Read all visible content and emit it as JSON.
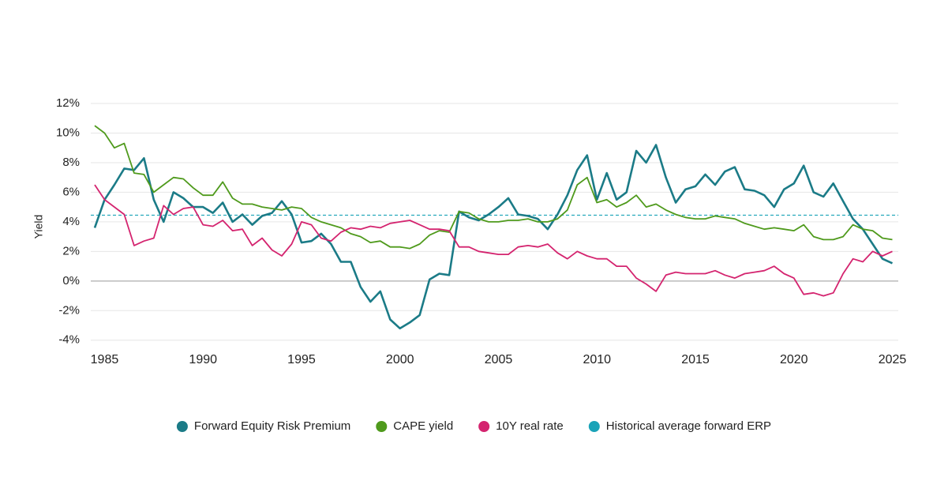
{
  "chart_data": {
    "type": "line",
    "y_label": "Yield",
    "x": [
      1984.5,
      1985,
      1985.5,
      1986,
      1986.5,
      1987,
      1987.5,
      1988,
      1988.5,
      1989,
      1989.5,
      1990,
      1990.5,
      1991,
      1991.5,
      1992,
      1992.5,
      1993,
      1993.5,
      1994,
      1994.5,
      1995,
      1995.5,
      1996,
      1996.5,
      1997,
      1997.5,
      1998,
      1998.5,
      1999,
      1999.5,
      2000,
      2000.5,
      2001,
      2001.5,
      2002,
      2002.5,
      2003,
      2003.5,
      2004,
      2004.5,
      2005,
      2005.5,
      2006,
      2006.5,
      2007,
      2007.5,
      2008,
      2008.5,
      2009,
      2009.5,
      2010,
      2010.5,
      2011,
      2011.5,
      2012,
      2012.5,
      2013,
      2013.5,
      2014,
      2014.5,
      2015,
      2015.5,
      2016,
      2016.5,
      2017,
      2017.5,
      2018,
      2018.5,
      2019,
      2019.5,
      2020,
      2020.5,
      2021,
      2021.5,
      2022,
      2022.5,
      2023,
      2023.5,
      2024,
      2024.5,
      2025
    ],
    "series": [
      {
        "name": "Forward Equity Risk Premium",
        "color": "#1b7b87",
        "width": 2.6,
        "values": [
          3.6,
          5.5,
          6.5,
          7.6,
          7.5,
          8.3,
          5.5,
          4.0,
          6.0,
          5.6,
          5.0,
          5.0,
          4.6,
          5.3,
          4.0,
          4.5,
          3.8,
          4.4,
          4.6,
          5.4,
          4.5,
          2.6,
          2.7,
          3.2,
          2.5,
          1.3,
          1.3,
          -0.4,
          -1.4,
          -0.7,
          -2.6,
          -3.2,
          -2.8,
          -2.3,
          0.1,
          0.5,
          0.4,
          4.7,
          4.3,
          4.1,
          4.5,
          5.0,
          5.6,
          4.5,
          4.4,
          4.2,
          3.5,
          4.5,
          5.8,
          7.5,
          8.5,
          5.5,
          7.3,
          5.5,
          6.0,
          8.8,
          8.0,
          9.2,
          7.0,
          5.3,
          6.2,
          6.4,
          7.2,
          6.5,
          7.4,
          7.7,
          6.2,
          6.1,
          5.8,
          5.0,
          6.2,
          6.6,
          7.8,
          6.0,
          5.7,
          6.6,
          5.4,
          4.2,
          3.5,
          2.5,
          1.5,
          1.2
        ]
      },
      {
        "name": "CAPE yield",
        "color": "#4f9a1c",
        "width": 1.8,
        "values": [
          10.5,
          10.0,
          9.0,
          9.3,
          7.3,
          7.2,
          6.0,
          6.5,
          7.0,
          6.9,
          6.3,
          5.8,
          5.8,
          6.7,
          5.6,
          5.2,
          5.2,
          5.0,
          4.9,
          4.8,
          5.0,
          4.9,
          4.3,
          4.0,
          3.8,
          3.6,
          3.2,
          3.0,
          2.6,
          2.7,
          2.3,
          2.3,
          2.2,
          2.5,
          3.1,
          3.4,
          3.3,
          4.7,
          4.6,
          4.2,
          4.0,
          4.0,
          4.1,
          4.1,
          4.2,
          4.0,
          4.0,
          4.2,
          4.8,
          6.5,
          7.0,
          5.3,
          5.5,
          5.0,
          5.3,
          5.8,
          5.0,
          5.2,
          4.8,
          4.5,
          4.3,
          4.2,
          4.2,
          4.4,
          4.3,
          4.2,
          3.9,
          3.7,
          3.5,
          3.6,
          3.5,
          3.4,
          3.8,
          3.0,
          2.8,
          2.8,
          3.0,
          3.8,
          3.5,
          3.4,
          2.9,
          2.8
        ]
      },
      {
        "name": "10Y real rate",
        "color": "#d4246f",
        "width": 1.8,
        "values": [
          6.5,
          5.5,
          5.0,
          4.5,
          2.4,
          2.7,
          2.9,
          5.1,
          4.5,
          4.9,
          5.0,
          3.8,
          3.7,
          4.1,
          3.4,
          3.5,
          2.4,
          2.9,
          2.1,
          1.7,
          2.5,
          4.0,
          3.8,
          2.9,
          2.7,
          3.3,
          3.6,
          3.5,
          3.7,
          3.6,
          3.9,
          4.0,
          4.1,
          3.8,
          3.5,
          3.5,
          3.4,
          2.3,
          2.3,
          2.0,
          1.9,
          1.8,
          1.8,
          2.3,
          2.4,
          2.3,
          2.5,
          1.9,
          1.5,
          2.0,
          1.7,
          1.5,
          1.5,
          1.0,
          1.0,
          0.2,
          -0.2,
          -0.7,
          0.4,
          0.6,
          0.5,
          0.5,
          0.5,
          0.7,
          0.4,
          0.2,
          0.5,
          0.6,
          0.7,
          1.0,
          0.5,
          0.2,
          -0.9,
          -0.8,
          -1.0,
          -0.8,
          0.5,
          1.5,
          1.3,
          2.0,
          1.7,
          2.0
        ]
      }
    ],
    "reference_line": {
      "name": "Historical average forward ERP",
      "value": 4.45,
      "color": "#1aa3b8"
    },
    "xlim": [
      1984.3,
      2025.3
    ],
    "xticks": [
      1985,
      1990,
      1995,
      2000,
      2005,
      2010,
      2015,
      2020,
      2025
    ],
    "ylim": [
      -4.6,
      12
    ],
    "yticks": [
      {
        "value": -4,
        "label": "-4%"
      },
      {
        "value": -2,
        "label": "-2%"
      },
      {
        "value": 0,
        "label": "0%"
      },
      {
        "value": 2,
        "label": "2%"
      },
      {
        "value": 4,
        "label": "4%"
      },
      {
        "value": 6,
        "label": "6%"
      },
      {
        "value": 8,
        "label": "8%"
      },
      {
        "value": 10,
        "label": "10%"
      },
      {
        "value": 12,
        "label": "12%"
      }
    ],
    "grid": true,
    "legend": "bottom"
  }
}
